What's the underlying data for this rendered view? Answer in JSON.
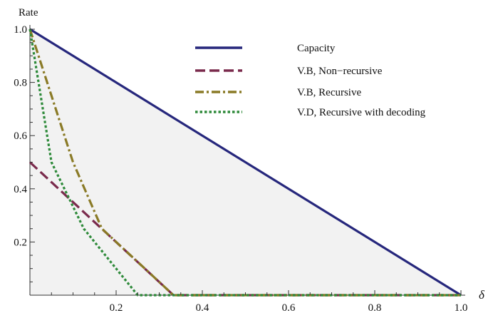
{
  "chart_data": {
    "type": "line",
    "xlabel": "δ",
    "ylabel": "Rate",
    "xlim": [
      0,
      1
    ],
    "ylim": [
      0,
      1
    ],
    "xticks": [
      0.2,
      0.4,
      0.6,
      0.8,
      1.0
    ],
    "xtick_labels": [
      "0.2",
      "0.4",
      "0.6",
      "0.8",
      "1.0"
    ],
    "yticks": [
      0.2,
      0.4,
      0.6,
      0.8,
      1.0
    ],
    "ytick_labels": [
      "0.2",
      "0.4",
      "0.6",
      "0.8",
      "1.0"
    ],
    "legend_position": "top-right",
    "grid": false,
    "shaded_region": {
      "under_series": "Capacity",
      "color": "#f2f2f2"
    },
    "series": [
      {
        "name": "Capacity",
        "color": "#26277c",
        "dash": "solid",
        "x": [
          0,
          1.0
        ],
        "y": [
          1.0,
          0
        ]
      },
      {
        "name": "V.B, Non−recursive",
        "color": "#7a2a4c",
        "dash": "dash",
        "x": [
          0,
          0.333,
          1.0
        ],
        "y": [
          0.5,
          0,
          0
        ]
      },
      {
        "name": "V.B, Recursive",
        "color": "#8a7a26",
        "dash": "dashdot",
        "x": [
          0,
          0.1,
          0.167,
          0.333,
          1.0
        ],
        "y": [
          1.0,
          0.5,
          0.25,
          0,
          0
        ]
      },
      {
        "name": "V.D, Recursive with decoding",
        "color": "#2e8a3a",
        "dash": "dot",
        "x": [
          0,
          0.05,
          0.125,
          0.25,
          1.0
        ],
        "y": [
          1.0,
          0.5,
          0.25,
          0,
          0
        ]
      }
    ]
  }
}
